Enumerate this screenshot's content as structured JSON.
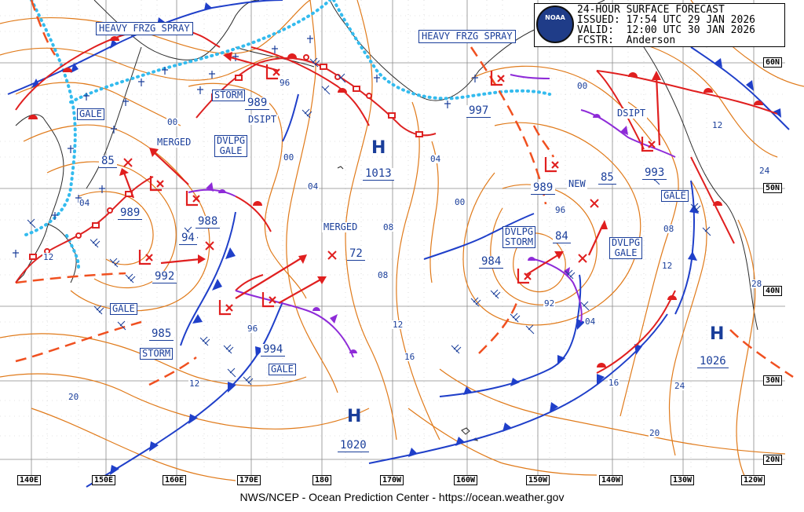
{
  "header": {
    "title": "24-HOUR SURFACE FORECAST",
    "issued": "ISSUED: 17:54 UTC 29 JAN 2026",
    "valid": "VALID:  12:00 UTC 30 JAN 2026",
    "forecaster": "FCSTR:  Anderson",
    "logo_text": "NOAA"
  },
  "footer": "NWS/NCEP - Ocean Prediction Center - https://ocean.weather.gov",
  "longitude_labels": [
    "140E",
    "150E",
    "160E",
    "170E",
    "180",
    "170W",
    "160W",
    "150W",
    "140W",
    "130W",
    "120W"
  ],
  "latitude_labels": [
    "60N",
    "50N",
    "40N",
    "30N",
    "20N"
  ],
  "warnings": {
    "heavy_frzg_spray_w": "HEAVY\nFRZG\nSPRAY",
    "heavy_frzg_spray_e": "HEAVY\nFRZG\nSPRAY",
    "gale_nw": "GALE",
    "storm_n": "STORM",
    "dvlpg_gale_n": "DVLPG\nGALE",
    "gale_w": "GALE",
    "storm_w": "STORM",
    "gale_c": "GALE",
    "dvlpg_storm": "DVLPG\nSTORM",
    "dvlpg_gale_e": "DVLPG\nGALE",
    "gale_e": "GALE"
  },
  "notes": {
    "merged_1": "MERGED",
    "merged_2": "MERGED",
    "dsipt_1": "DSIPT",
    "dsipt_2": "DSIPT",
    "new": "NEW"
  },
  "highs": [
    {
      "label": "H",
      "pressure": "1013"
    },
    {
      "label": "H",
      "pressure": "1020"
    },
    {
      "label": "H",
      "pressure": "1026"
    }
  ],
  "lows": {
    "l_989_n": "989",
    "l_85_w": "85",
    "l_989_w": "989",
    "l_988": "988",
    "l_94": "94",
    "l_992": "992",
    "l_985": "985",
    "l_994": "994",
    "l_72": "72",
    "l_997": "997",
    "l_989_e": "989",
    "l_85_e": "85",
    "l_993": "993",
    "l_84": "84",
    "l_984": "984"
  },
  "isobar_labels": [
    "00",
    "96",
    "00",
    "04",
    "04",
    "08",
    "08",
    "12",
    "16",
    "12",
    "20",
    "04",
    "00",
    "96",
    "92",
    "04",
    "16",
    "20",
    "24",
    "08",
    "12",
    "28",
    "24",
    "12",
    "00",
    "96",
    "04",
    "12"
  ],
  "colors": {
    "isobar": "#e07a1a",
    "cold_front": "#1f3fc9",
    "warm_front": "#e01f1f",
    "occluded_front": "#8e2bd8",
    "ice_edge": "#33bbee",
    "grid": "#888888",
    "label": "#1a3e9a"
  }
}
